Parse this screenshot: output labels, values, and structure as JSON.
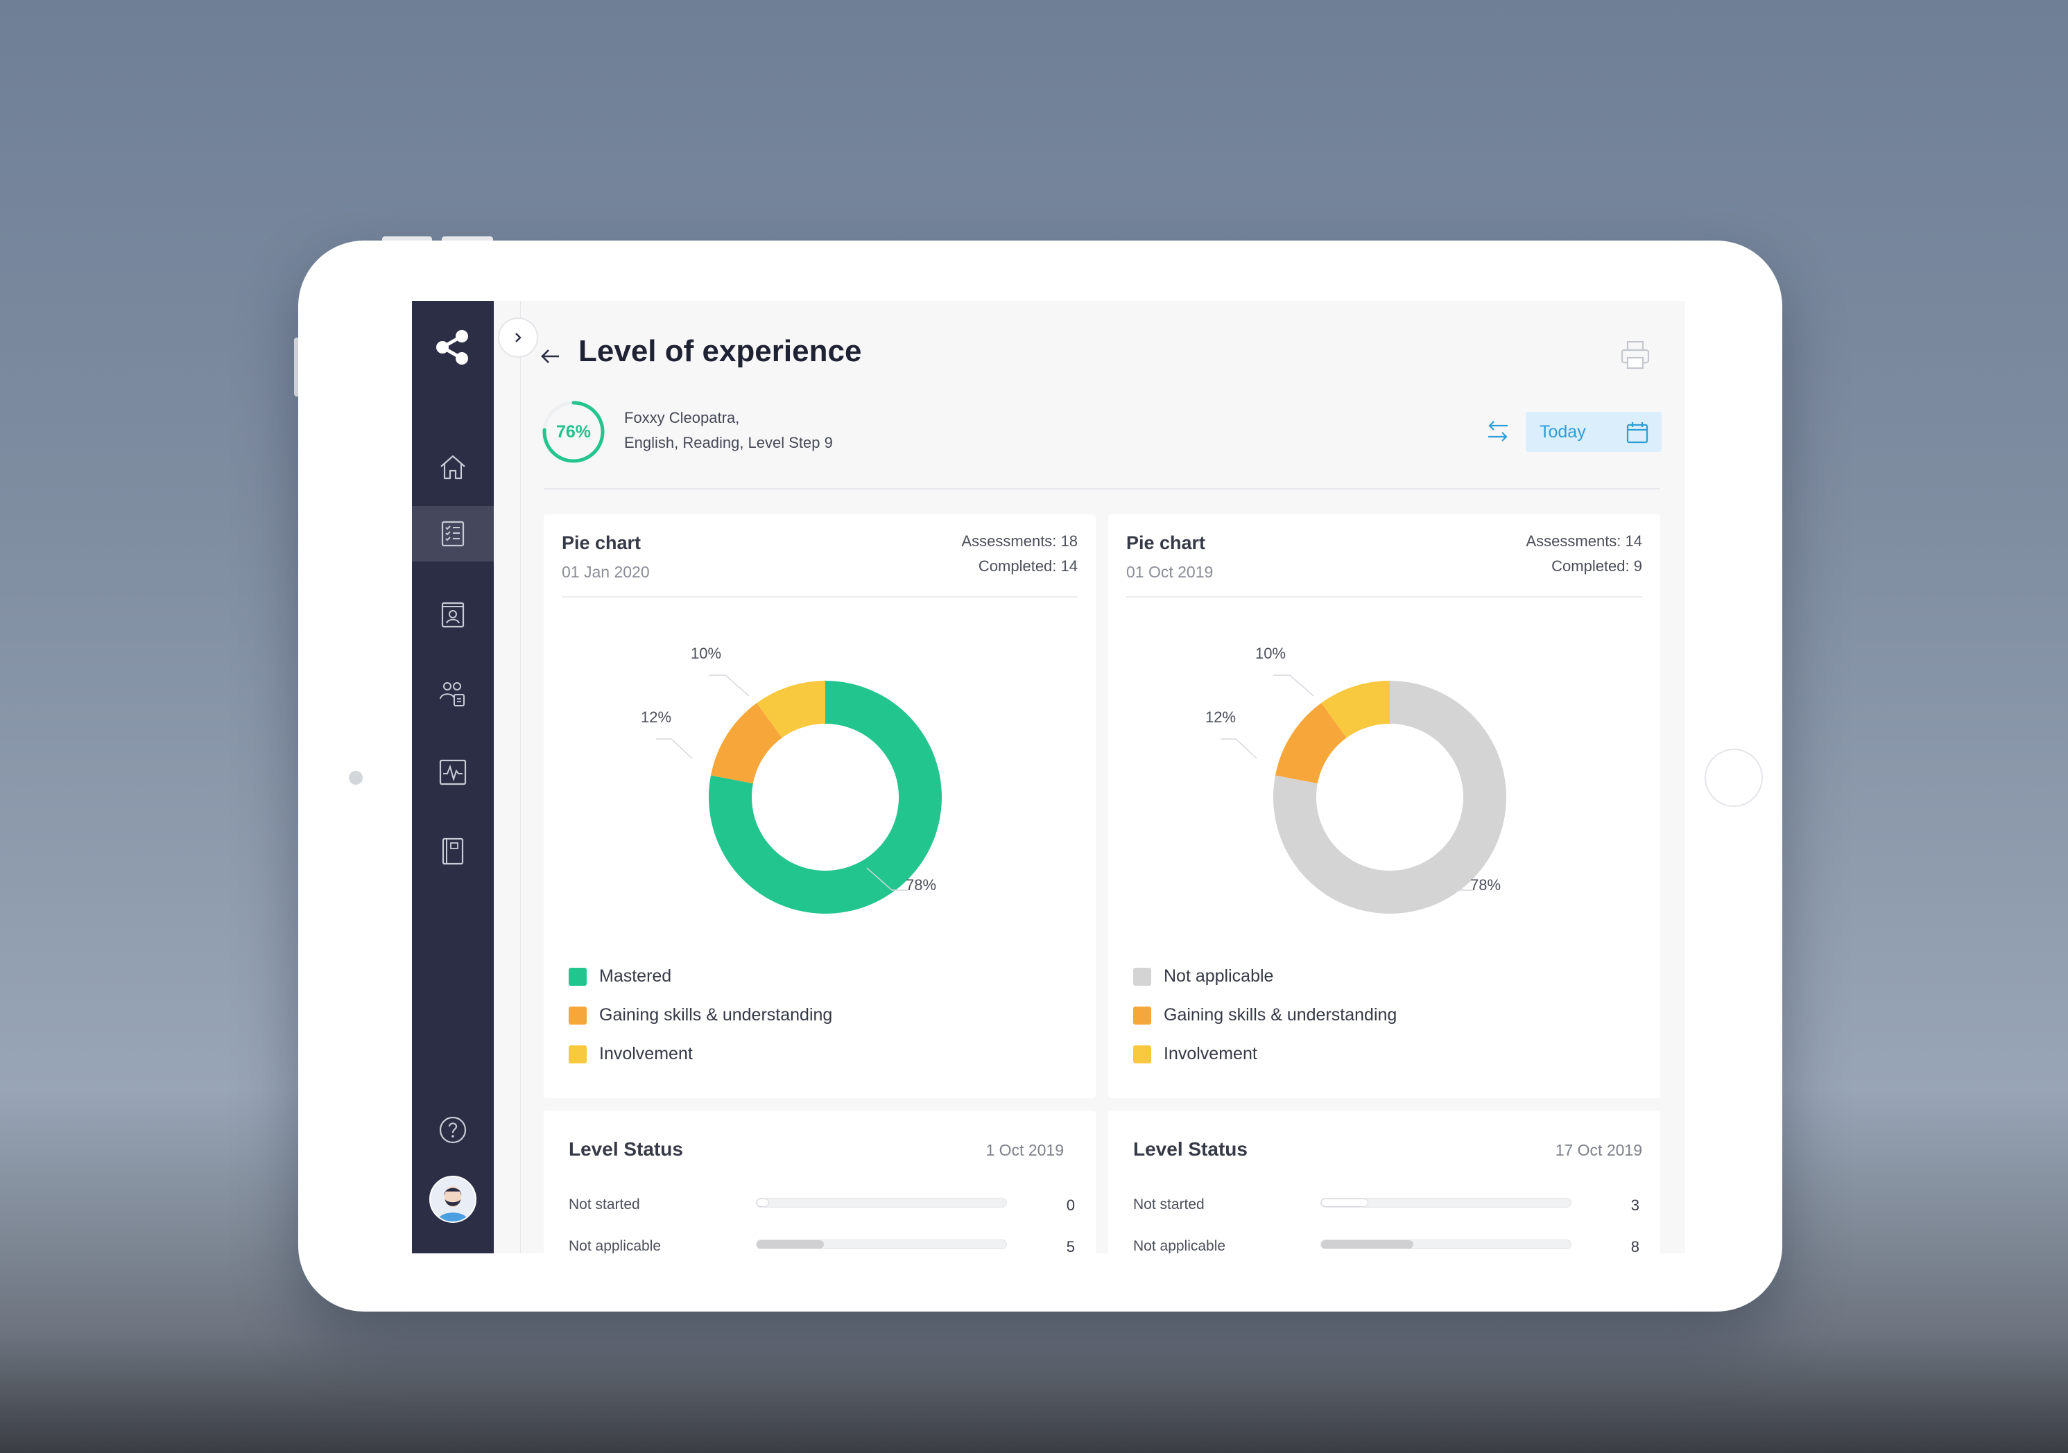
{
  "header": {
    "title": "Level of experience"
  },
  "student": {
    "progress": "76%",
    "progress_value": 0.76,
    "name": "Foxxy Cleopatra,",
    "details": "English, Reading, Level Step 9"
  },
  "date_filter": {
    "label": "Today"
  },
  "sidebar": {
    "items": [
      "home-icon",
      "assessment-list-icon",
      "student-profile-icon",
      "groups-icon",
      "activity-icon",
      "book-icon"
    ],
    "bottom": [
      "help-icon",
      "user-avatar"
    ]
  },
  "cards": [
    {
      "title": "Pie chart",
      "date": "01 Jan 2020",
      "assessments": "Assessments: 18",
      "completed": "Completed: 14",
      "legend": [
        "Mastered",
        "Gaining skills & understanding",
        "Involvement"
      ],
      "labels": [
        "10%",
        "12%",
        "78%"
      ]
    },
    {
      "title": "Pie chart",
      "date": "01 Oct 2019",
      "assessments": "Assessments: 14",
      "completed": "Completed: 9",
      "legend": [
        "Not applicable",
        "Gaining skills & understanding",
        "Involvement"
      ],
      "labels": [
        "10%",
        "12%",
        "78%"
      ]
    }
  ],
  "chart_data": [
    {
      "type": "pie",
      "categories": [
        "Mastered",
        "Gaining skills & understanding",
        "Involvement"
      ],
      "values": [
        78,
        12,
        10
      ],
      "colors": [
        "#22c58e",
        "#f7a73a",
        "#f8c83e"
      ]
    },
    {
      "type": "pie",
      "categories": [
        "Not applicable",
        "Gaining skills & understanding",
        "Involvement"
      ],
      "values": [
        78,
        12,
        10
      ],
      "colors": [
        "#d4d4d4",
        "#f7a73a",
        "#f8c83e"
      ]
    }
  ],
  "level_status": [
    {
      "title": "Level Status",
      "date": "1 Oct 2019",
      "rows": [
        {
          "label": "Not started",
          "count": "0",
          "fraction": 0.05
        },
        {
          "label": "Not applicable",
          "count": "5",
          "fraction": 0.27
        }
      ]
    },
    {
      "title": "Level Status",
      "date": "17 Oct 2019",
      "rows": [
        {
          "label": "Not started",
          "count": "3",
          "fraction": 0.19
        },
        {
          "label": "Not applicable",
          "count": "8",
          "fraction": 0.37
        }
      ]
    }
  ],
  "colors": {
    "sidebar": "#2b2e45",
    "accent": "#22c58e",
    "link": "#2e9ed8"
  }
}
